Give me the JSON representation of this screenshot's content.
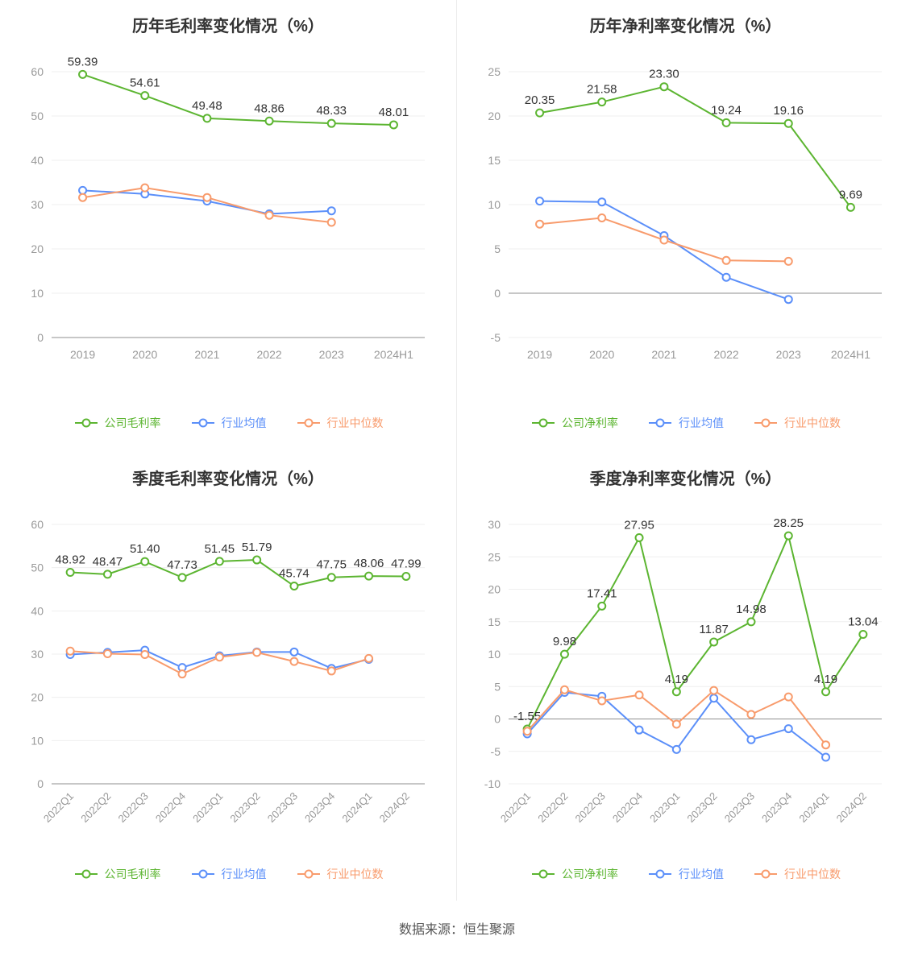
{
  "page": {
    "source_note": "数据来源：恒生聚源"
  },
  "colors": {
    "company": "#5cb531",
    "industry_avg": "#5b8ff9",
    "industry_median": "#f89b6c"
  },
  "chart_data": [
    {
      "type": "line",
      "title": "历年毛利率变化情况（%）",
      "xlabel": "",
      "ylabel": "",
      "legend_position": "bottom",
      "grid": true,
      "rotate_x_labels": false,
      "ylim": [
        0,
        60
      ],
      "yticks": [
        0,
        10,
        20,
        30,
        40,
        50,
        60
      ],
      "categories": [
        "2019",
        "2020",
        "2021",
        "2022",
        "2023",
        "2024H1"
      ],
      "series": [
        {
          "name": "公司毛利率",
          "color_key": "company",
          "show_labels": true,
          "values": [
            59.39,
            54.61,
            49.48,
            48.86,
            48.33,
            48.01
          ]
        },
        {
          "name": "行业均值",
          "color_key": "industry_avg",
          "show_labels": false,
          "values": [
            33.2,
            32.4,
            30.8,
            27.9,
            28.6
          ]
        },
        {
          "name": "行业中位数",
          "color_key": "industry_median",
          "show_labels": false,
          "values": [
            31.6,
            33.8,
            31.6,
            27.6,
            26.0
          ]
        }
      ]
    },
    {
      "type": "line",
      "title": "历年净利率变化情况（%）",
      "xlabel": "",
      "ylabel": "",
      "legend_position": "bottom",
      "grid": true,
      "rotate_x_labels": false,
      "ylim": [
        -5,
        25
      ],
      "yticks": [
        -5,
        0,
        5,
        10,
        15,
        20,
        25
      ],
      "categories": [
        "2019",
        "2020",
        "2021",
        "2022",
        "2023",
        "2024H1"
      ],
      "series": [
        {
          "name": "公司净利率",
          "color_key": "company",
          "show_labels": true,
          "values": [
            20.35,
            21.58,
            23.3,
            19.24,
            19.16,
            9.69
          ]
        },
        {
          "name": "行业均值",
          "color_key": "industry_avg",
          "show_labels": false,
          "values": [
            10.4,
            10.3,
            6.5,
            1.8,
            -0.7
          ]
        },
        {
          "name": "行业中位数",
          "color_key": "industry_median",
          "show_labels": false,
          "values": [
            7.8,
            8.5,
            6.0,
            3.7,
            3.6
          ]
        }
      ]
    },
    {
      "type": "line",
      "title": "季度毛利率变化情况（%）",
      "xlabel": "",
      "ylabel": "",
      "legend_position": "bottom",
      "grid": true,
      "rotate_x_labels": true,
      "ylim": [
        0,
        60
      ],
      "yticks": [
        0,
        10,
        20,
        30,
        40,
        50,
        60
      ],
      "categories": [
        "2022Q1",
        "2022Q2",
        "2022Q3",
        "2022Q4",
        "2023Q1",
        "2023Q2",
        "2023Q3",
        "2023Q4",
        "2024Q1",
        "2024Q2"
      ],
      "series": [
        {
          "name": "公司毛利率",
          "color_key": "company",
          "show_labels": true,
          "values": [
            48.92,
            48.47,
            51.4,
            47.73,
            51.45,
            51.79,
            45.74,
            47.75,
            48.06,
            47.99
          ]
        },
        {
          "name": "行业均值",
          "color_key": "industry_avg",
          "show_labels": false,
          "values": [
            29.9,
            30.4,
            30.9,
            26.9,
            29.6,
            30.5,
            30.5,
            26.7,
            28.8
          ]
        },
        {
          "name": "行业中位数",
          "color_key": "industry_median",
          "show_labels": false,
          "values": [
            30.7,
            30.1,
            29.9,
            25.4,
            29.3,
            30.4,
            28.3,
            26.1,
            29.0
          ]
        }
      ]
    },
    {
      "type": "line",
      "title": "季度净利率变化情况（%）",
      "xlabel": "",
      "ylabel": "",
      "legend_position": "bottom",
      "grid": true,
      "rotate_x_labels": true,
      "ylim": [
        -10,
        30
      ],
      "yticks": [
        -10,
        -5,
        0,
        5,
        10,
        15,
        20,
        25,
        30
      ],
      "categories": [
        "2022Q1",
        "2022Q2",
        "2022Q3",
        "2022Q4",
        "2023Q1",
        "2023Q2",
        "2023Q3",
        "2023Q4",
        "2024Q1",
        "2024Q2"
      ],
      "series": [
        {
          "name": "公司净利率",
          "color_key": "company",
          "show_labels": true,
          "values": [
            -1.55,
            9.98,
            17.41,
            27.95,
            4.19,
            11.87,
            14.98,
            28.25,
            4.19,
            13.04
          ]
        },
        {
          "name": "行业均值",
          "color_key": "industry_avg",
          "show_labels": false,
          "values": [
            -2.3,
            4.1,
            3.5,
            -1.7,
            -4.7,
            3.2,
            -3.2,
            -1.5,
            -5.9
          ]
        },
        {
          "name": "行业中位数",
          "color_key": "industry_median",
          "show_labels": false,
          "values": [
            -1.9,
            4.5,
            2.8,
            3.7,
            -0.8,
            4.4,
            0.7,
            3.4,
            -4.0
          ]
        }
      ]
    }
  ]
}
